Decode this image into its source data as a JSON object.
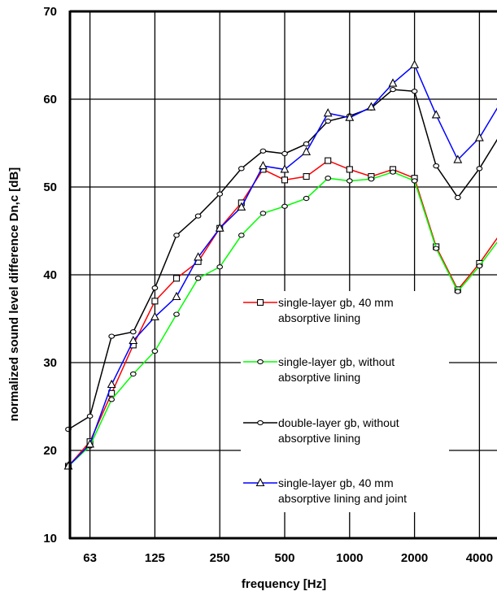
{
  "chart_data": {
    "type": "line",
    "xlabel": "frequency [Hz]",
    "ylabel": "normalized sound level difference Dn,c [dB]",
    "ylim": [
      10,
      70
    ],
    "y_ticks": [
      "10",
      "20",
      "30",
      "40",
      "50",
      "60",
      "70"
    ],
    "x_scale": "log (third-octave bands)",
    "x_tick_labels": [
      "63",
      "125",
      "250",
      "500",
      "1000",
      "2000",
      "4000"
    ],
    "x": [
      50,
      63,
      80,
      100,
      125,
      160,
      200,
      250,
      315,
      400,
      500,
      630,
      800,
      1000,
      1250,
      1600,
      2000,
      2500,
      3150,
      4000,
      5000
    ],
    "grid": true,
    "series": [
      {
        "name": "single-layer gb, 40 mm absorptive lining",
        "color": "#ff0000",
        "marker": "square",
        "values": [
          18.2,
          21.0,
          26.5,
          32.0,
          37.0,
          39.6,
          41.5,
          45.3,
          48.2,
          52.0,
          50.8,
          51.2,
          53.0,
          52.0,
          51.2,
          52.0,
          51.0,
          43.2,
          38.3,
          41.3,
          44.8
        ]
      },
      {
        "name": "single-layer gb, without absorptive lining",
        "color": "#00ff00",
        "marker": "circle",
        "values": [
          18.2,
          20.5,
          25.8,
          28.7,
          31.3,
          35.5,
          39.6,
          40.9,
          44.5,
          47.0,
          47.8,
          48.7,
          51.0,
          50.7,
          50.9,
          51.7,
          50.7,
          43.0,
          38.1,
          41.0,
          44.3
        ]
      },
      {
        "name": "double-layer gb, without absorptive lining",
        "color": "#000000",
        "marker": "circle",
        "values": [
          22.4,
          23.9,
          33.0,
          33.5,
          38.5,
          44.5,
          46.7,
          49.2,
          52.1,
          54.1,
          53.8,
          54.9,
          57.5,
          58.1,
          59.0,
          61.1,
          60.9,
          52.4,
          48.8,
          52.1,
          56.1
        ]
      },
      {
        "name": "single-layer gb, 40 mm absorptive lining and joint",
        "color": "#0000ff",
        "marker": "triangle",
        "values": [
          18.2,
          20.7,
          27.5,
          32.5,
          35.2,
          37.5,
          42.0,
          45.3,
          47.7,
          52.4,
          52.0,
          54.0,
          58.4,
          57.9,
          59.1,
          61.8,
          63.9,
          58.2,
          53.1,
          55.6,
          59.7
        ]
      }
    ],
    "legend": [
      {
        "line1": "single-layer gb, 40 mm",
        "line2": "absorptive lining"
      },
      {
        "line1": "single-layer gb, without",
        "line2": "absorptive lining"
      },
      {
        "line1": "double-layer gb, without",
        "line2": "absorptive lining"
      },
      {
        "line1": "single-layer gb, 40 mm",
        "line2": "absorptive lining and joint"
      }
    ]
  }
}
